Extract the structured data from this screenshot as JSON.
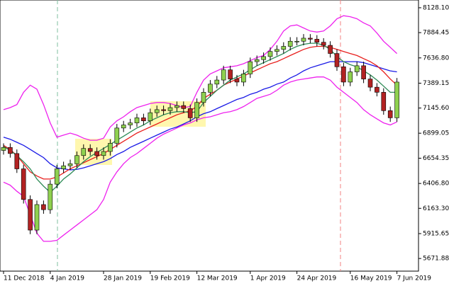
{
  "chart_data": {
    "type": "candlestick",
    "categories": [
      "11 Dec 2018",
      null,
      null,
      null,
      null,
      null,
      null,
      "4 Jan 2019",
      null,
      null,
      null,
      null,
      null,
      null,
      null,
      "28 Jan 2019",
      null,
      null,
      null,
      null,
      null,
      null,
      "19 Feb 2019",
      null,
      null,
      null,
      null,
      null,
      null,
      "12 Mar 2019",
      null,
      null,
      null,
      null,
      null,
      null,
      null,
      "1 Apr 2019",
      null,
      null,
      null,
      null,
      null,
      null,
      "24 Apr 2019",
      null,
      null,
      null,
      null,
      null,
      null,
      null,
      "16 May 2019",
      null,
      null,
      null,
      null,
      null,
      null,
      "7 Jun 2019"
    ],
    "open": [
      6730,
      6760,
      6700,
      6550,
      6250,
      5950,
      6200,
      6150,
      6400,
      6550,
      6580,
      6600,
      6680,
      6750,
      6720,
      6680,
      6720,
      6800,
      6950,
      6980,
      7000,
      7050,
      7020,
      7100,
      7130,
      7120,
      7150,
      7170,
      7140,
      7050,
      7200,
      7300,
      7380,
      7420,
      7520,
      7430,
      7400,
      7480,
      7600,
      7620,
      7650,
      7700,
      7720,
      7750,
      7800,
      7800,
      7830,
      7820,
      7790,
      7760,
      7680,
      7550,
      7400,
      7500,
      7560,
      7430,
      7350,
      7300,
      7120,
      7050
    ],
    "high": [
      6800,
      6800,
      6740,
      6590,
      6290,
      6240,
      6240,
      6440,
      6590,
      6620,
      6640,
      6720,
      6790,
      6790,
      6760,
      6760,
      6840,
      6990,
      7020,
      7040,
      7090,
      7090,
      7140,
      7170,
      7170,
      7190,
      7210,
      7210,
      7180,
      7240,
      7340,
      7420,
      7460,
      7560,
      7560,
      7470,
      7520,
      7640,
      7660,
      7690,
      7740,
      7760,
      7790,
      7840,
      7840,
      7870,
      7870,
      7860,
      7830,
      7800,
      7720,
      7590,
      7540,
      7600,
      7600,
      7470,
      7390,
      7340,
      7160,
      7440
    ],
    "low": [
      6690,
      6660,
      6510,
      6210,
      5910,
      5910,
      6110,
      6110,
      6360,
      6510,
      6540,
      6560,
      6640,
      6680,
      6640,
      6640,
      6680,
      6760,
      6910,
      6940,
      6960,
      6980,
      6980,
      7060,
      7080,
      7080,
      7110,
      7100,
      7010,
      7010,
      7160,
      7260,
      7340,
      7380,
      7390,
      7360,
      7360,
      7440,
      7560,
      7580,
      7610,
      7660,
      7680,
      7710,
      7760,
      7760,
      7780,
      7750,
      7720,
      7640,
      7510,
      7360,
      7360,
      7460,
      7390,
      7310,
      7260,
      7080,
      7010,
      7010
    ],
    "close": [
      6760,
      6700,
      6550,
      6250,
      5950,
      6200,
      6150,
      6400,
      6550,
      6580,
      6600,
      6680,
      6750,
      6720,
      6680,
      6720,
      6800,
      6950,
      6980,
      7000,
      7050,
      7020,
      7100,
      7130,
      7120,
      7150,
      7170,
      7140,
      7050,
      7200,
      7300,
      7380,
      7420,
      7520,
      7430,
      7400,
      7480,
      7600,
      7620,
      7650,
      7700,
      7720,
      7750,
      7800,
      7800,
      7830,
      7820,
      7790,
      7760,
      7680,
      7550,
      7400,
      7500,
      7560,
      7430,
      7350,
      7300,
      7120,
      7050,
      7400
    ],
    "up_color": "#8fd14f",
    "down_color": "#b22222",
    "series": [
      {
        "color": "#ee22ee",
        "values": [
          7130,
          7150,
          7180,
          7300,
          7370,
          7330,
          7180,
          7000,
          6860,
          6880,
          6900,
          6880,
          6850,
          6830,
          6830,
          6850,
          6960,
          7020,
          7060,
          7110,
          7150,
          7170,
          7190,
          7200,
          7200,
          7190,
          7170,
          7150,
          7160,
          7300,
          7420,
          7480,
          7510,
          7540,
          7550,
          7560,
          7580,
          7610,
          7640,
          7660,
          7720,
          7800,
          7900,
          7950,
          7960,
          7930,
          7900,
          7890,
          7900,
          7950,
          8020,
          8050,
          8040,
          8020,
          7980,
          7950,
          7880,
          7800,
          7740,
          7680
        ]
      },
      {
        "color": "#ee22ee",
        "values": [
          6420,
          6390,
          6330,
          6280,
          6100,
          5920,
          5840,
          5840,
          5850,
          5900,
          5950,
          6000,
          6050,
          6100,
          6150,
          6250,
          6420,
          6520,
          6600,
          6660,
          6700,
          6750,
          6800,
          6850,
          6890,
          6920,
          6950,
          6980,
          7000,
          7030,
          7050,
          7060,
          7080,
          7100,
          7110,
          7130,
          7160,
          7200,
          7240,
          7260,
          7280,
          7320,
          7370,
          7400,
          7420,
          7430,
          7440,
          7450,
          7450,
          7420,
          7350,
          7300,
          7250,
          7200,
          7130,
          7080,
          7040,
          7000,
          6980,
          7010
        ]
      },
      {
        "color": "#1a1ae6",
        "values": [
          6860,
          6840,
          6810,
          6780,
          6740,
          6700,
          6660,
          6600,
          6560,
          6550,
          6540,
          6545,
          6560,
          6580,
          6600,
          6620,
          6650,
          6690,
          6720,
          6760,
          6790,
          6820,
          6850,
          6880,
          6910,
          6940,
          6960,
          6990,
          7020,
          7060,
          7090,
          7110,
          7140,
          7170,
          7200,
          7230,
          7250,
          7280,
          7300,
          7330,
          7350,
          7380,
          7400,
          7440,
          7470,
          7510,
          7540,
          7560,
          7580,
          7600,
          7600,
          7600,
          7600,
          7600,
          7590,
          7570,
          7550,
          7530,
          7510,
          7500
        ]
      },
      {
        "color": "#e8201e",
        "values": [
          6780,
          6740,
          6680,
          6600,
          6520,
          6480,
          6450,
          6450,
          6470,
          6510,
          6550,
          6580,
          6610,
          6640,
          6670,
          6700,
          6740,
          6780,
          6820,
          6860,
          6900,
          6930,
          6960,
          6990,
          7020,
          7050,
          7080,
          7100,
          7120,
          7160,
          7240,
          7280,
          7320,
          7370,
          7400,
          7430,
          7460,
          7490,
          7520,
          7550,
          7580,
          7600,
          7630,
          7660,
          7690,
          7720,
          7740,
          7750,
          7750,
          7740,
          7720,
          7700,
          7680,
          7660,
          7630,
          7600,
          7560,
          7500,
          7430,
          7370
        ]
      },
      {
        "color": "#2e8b57",
        "values": [
          6770,
          6730,
          6680,
          6620,
          6550,
          6450,
          6380,
          6320,
          6380,
          6450,
          6500,
          6560,
          6620,
          6670,
          6710,
          6750,
          6790,
          6830,
          6870,
          6910,
          6950,
          6980,
          7020,
          7050,
          7080,
          7100,
          7110,
          7110,
          7100,
          7110,
          7200,
          7260,
          7320,
          7370,
          7420,
          7450,
          7480,
          7520,
          7560,
          7590,
          7620,
          7650,
          7680,
          7720,
          7750,
          7770,
          7780,
          7780,
          7760,
          7720,
          7650,
          7600,
          7570,
          7550,
          7510,
          7470,
          7420,
          7360,
          7300,
          7300
        ]
      }
    ],
    "ylim": [
      5548,
      8204
    ],
    "yticks": [
      {
        "value": 5671.88,
        "label": "5671.88"
      },
      {
        "value": 5915.65,
        "label": "5915.65"
      },
      {
        "value": 6163.3,
        "label": "6163.30"
      },
      {
        "value": 6406.8,
        "label": "6406.80"
      },
      {
        "value": 6654.35,
        "label": "6654.35"
      },
      {
        "value": 6899.05,
        "label": "6899.05"
      },
      {
        "value": 7145.6,
        "label": "7145.60"
      },
      {
        "value": 7389.15,
        "label": "7389.15"
      },
      {
        "value": 7636.8,
        "label": "7636.80"
      },
      {
        "value": 7884.45,
        "label": "7884.45"
      },
      {
        "value": 8128.1,
        "label": "8128.10"
      }
    ]
  }
}
